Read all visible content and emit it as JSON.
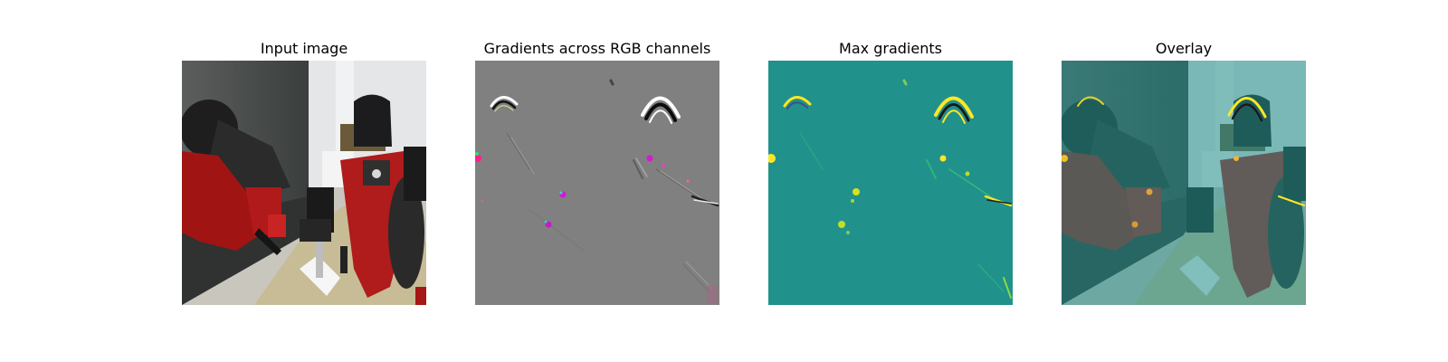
{
  "panels": [
    {
      "title": "Input image"
    },
    {
      "title": "Gradients across RGB channels"
    },
    {
      "title": "Max gradients"
    },
    {
      "title": "Overlay"
    }
  ],
  "colors": {
    "gradient_background": "#808080",
    "max_gradient_background": "#21918c",
    "max_gradient_high": "#fde725",
    "robot_red": "#b41c1c"
  }
}
